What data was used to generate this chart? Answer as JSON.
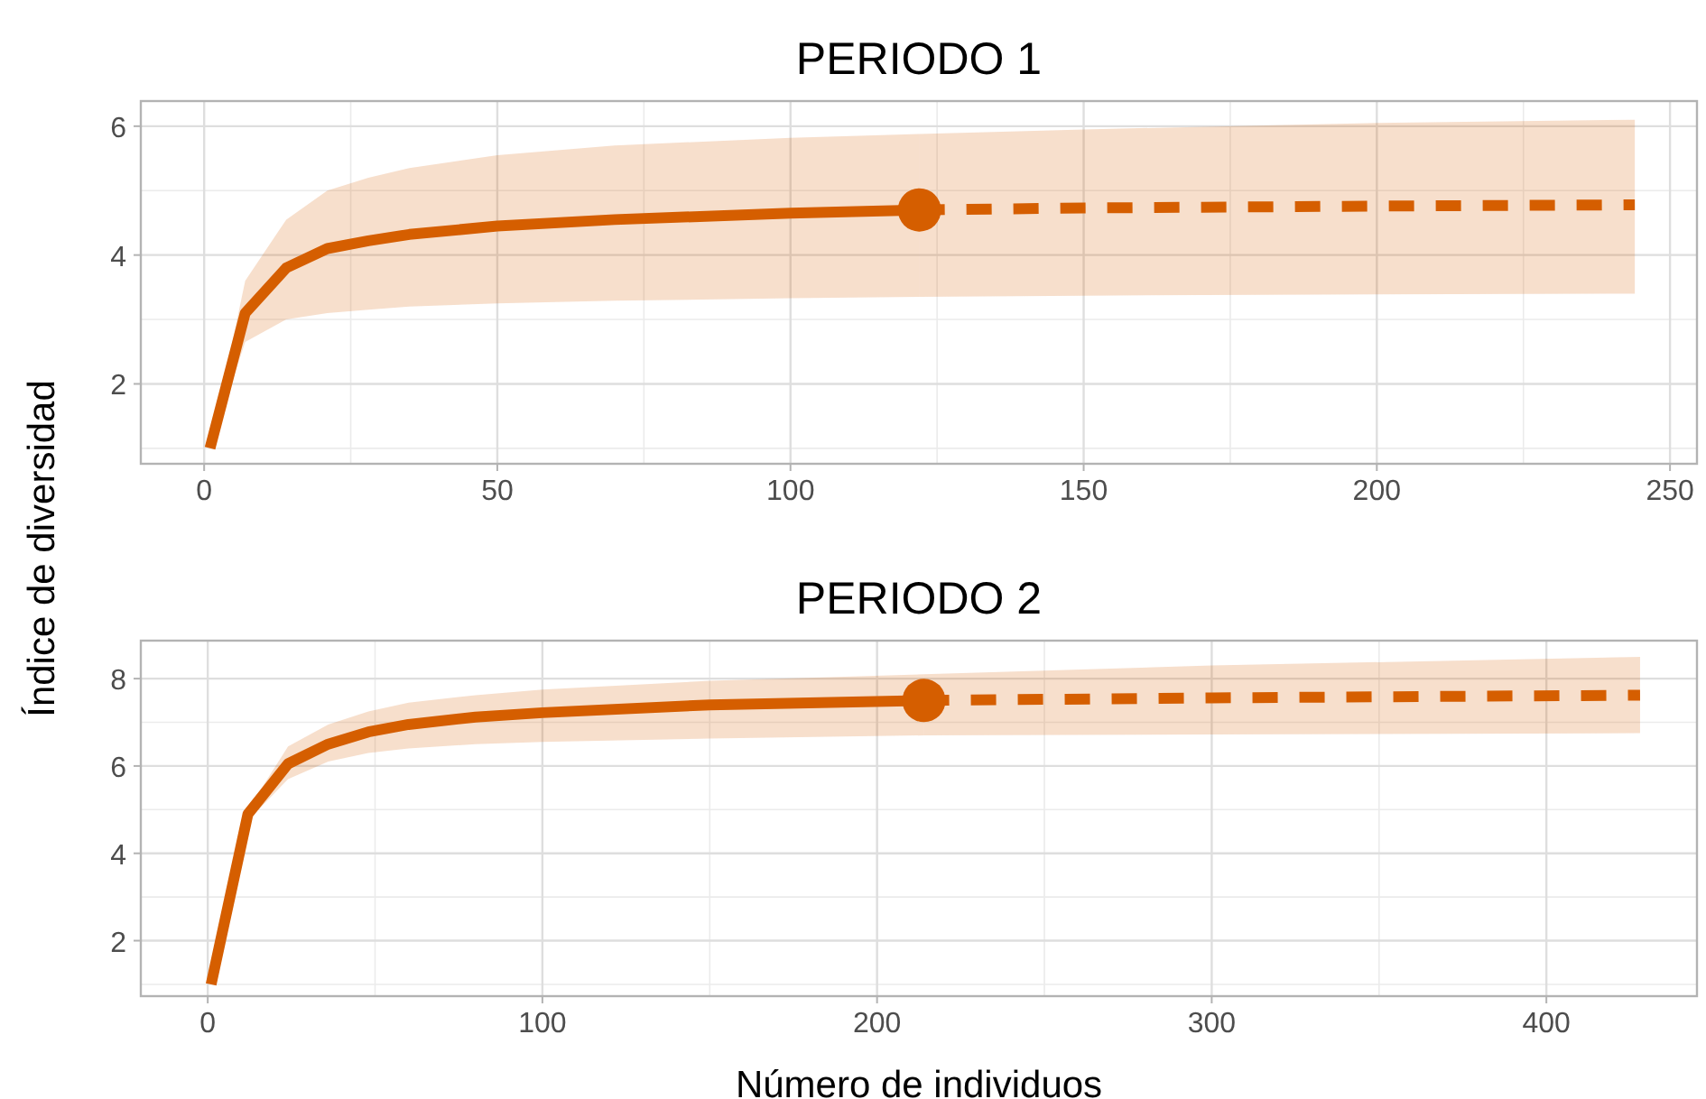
{
  "chart_data": [
    {
      "type": "line",
      "title": "PERIODO 1",
      "ylabel": "Índice de diversidad",
      "xlim": [
        -10.8,
        254.6
      ],
      "ylim": [
        0.76,
        6.39
      ],
      "xticks": [
        0,
        50,
        100,
        150,
        200,
        250
      ],
      "yticks": [
        2,
        4,
        6
      ],
      "grid": true,
      "series": [
        {
          "color": "#d55e00",
          "line_style": "solid",
          "x": [
            1,
            7,
            14,
            21,
            28,
            35,
            50,
            70,
            100,
            122
          ],
          "values": [
            1.0,
            3.1,
            3.8,
            4.1,
            4.22,
            4.32,
            4.45,
            4.55,
            4.65,
            4.7
          ],
          "lower": [
            1.0,
            2.65,
            3.0,
            3.1,
            3.15,
            3.2,
            3.25,
            3.29,
            3.33,
            3.35
          ],
          "upper": [
            1.0,
            3.6,
            4.55,
            5.0,
            5.2,
            5.35,
            5.55,
            5.7,
            5.82,
            5.88
          ]
        },
        {
          "color": "#d55e00",
          "line_style": "dashed",
          "x": [
            122,
            150,
            200,
            244
          ],
          "values": [
            4.7,
            4.73,
            4.76,
            4.78
          ],
          "lower": [
            3.35,
            3.37,
            3.39,
            3.4
          ],
          "upper": [
            5.88,
            5.95,
            6.05,
            6.1
          ]
        },
        {
          "type": "scatter",
          "color": "#d55e00",
          "marker": "circle",
          "x": [
            122
          ],
          "values": [
            4.7
          ]
        }
      ]
    },
    {
      "type": "line",
      "title": "PERIODO 2",
      "xlabel": "Número de individuos",
      "xlim": [
        -20,
        445
      ],
      "ylim": [
        0.73,
        8.87
      ],
      "xticks": [
        0,
        100,
        200,
        300,
        400
      ],
      "yticks": [
        2,
        4,
        6,
        8
      ],
      "grid": true,
      "series": [
        {
          "color": "#d55e00",
          "line_style": "solid",
          "x": [
            1,
            12,
            24,
            36,
            48,
            60,
            80,
            100,
            150,
            214
          ],
          "values": [
            1.0,
            4.9,
            6.05,
            6.5,
            6.78,
            6.95,
            7.12,
            7.22,
            7.4,
            7.5
          ],
          "lower": [
            1.0,
            4.75,
            5.7,
            6.1,
            6.3,
            6.4,
            6.5,
            6.55,
            6.63,
            6.7
          ],
          "upper": [
            1.0,
            5.0,
            6.45,
            6.95,
            7.25,
            7.45,
            7.62,
            7.75,
            7.95,
            8.1
          ]
        },
        {
          "color": "#d55e00",
          "line_style": "dashed",
          "x": [
            214,
            300,
            428
          ],
          "values": [
            7.5,
            7.56,
            7.62
          ],
          "lower": [
            6.7,
            6.72,
            6.75
          ],
          "upper": [
            8.1,
            8.3,
            8.5
          ]
        },
        {
          "type": "scatter",
          "color": "#d55e00",
          "marker": "circle",
          "x": [
            214
          ],
          "values": [
            7.5
          ]
        }
      ]
    }
  ]
}
